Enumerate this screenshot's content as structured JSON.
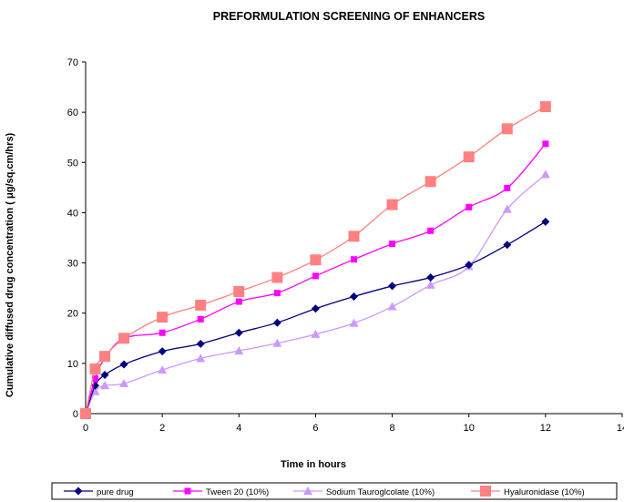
{
  "chart_data": {
    "type": "line",
    "title": "PREFORMULATION SCREENING OF ENHANCERS",
    "xlabel": "Time in hours",
    "ylabel": "Cumulative diffused drug concentration (  μg/sq.cm/hrs)",
    "xlim": [
      0,
      14
    ],
    "ylim": [
      0,
      70
    ],
    "xticks": [
      "0",
      "2",
      "4",
      "6",
      "8",
      "10",
      "12",
      "14"
    ],
    "yticks": [
      "0",
      "10",
      "20",
      "30",
      "40",
      "50",
      "60",
      "70"
    ],
    "grid": false,
    "legend_position": "bottom",
    "x": [
      0,
      0.25,
      0.5,
      1,
      2,
      3,
      4,
      5,
      6,
      7,
      8,
      9,
      10,
      11,
      12
    ],
    "series": [
      {
        "name": "pure drug",
        "color": "#000080",
        "marker": "diamond",
        "values": [
          0,
          5.6,
          7.7,
          9.8,
          12.4,
          13.9,
          16.1,
          18.1,
          20.9,
          23.3,
          25.4,
          27.1,
          29.6,
          33.6,
          38.2
        ]
      },
      {
        "name": "Tween 20 (10%)",
        "color": "#ff00ff",
        "marker": "square",
        "values": [
          0,
          7,
          11,
          15,
          16.1,
          18.8,
          22.3,
          24,
          27.4,
          30.7,
          33.8,
          36.4,
          41.1,
          44.9,
          53.7
        ]
      },
      {
        "name": "Sodium Tauroglcolate (10%)",
        "color": "#cc99ff",
        "marker": "triangle",
        "values": [
          0,
          4.4,
          5.6,
          6,
          8.7,
          11,
          12.5,
          14,
          15.8,
          18,
          21.3,
          25.6,
          29.3,
          40.7,
          47.6
        ]
      },
      {
        "name": "Hyaluronidase (10%)",
        "color": "#ff8080",
        "marker": "square-large",
        "values": [
          0,
          8.9,
          11.4,
          15,
          19.2,
          21.6,
          24.3,
          27.1,
          30.6,
          35.3,
          41.6,
          46.2,
          51.1,
          56.7,
          61.1
        ]
      }
    ]
  }
}
